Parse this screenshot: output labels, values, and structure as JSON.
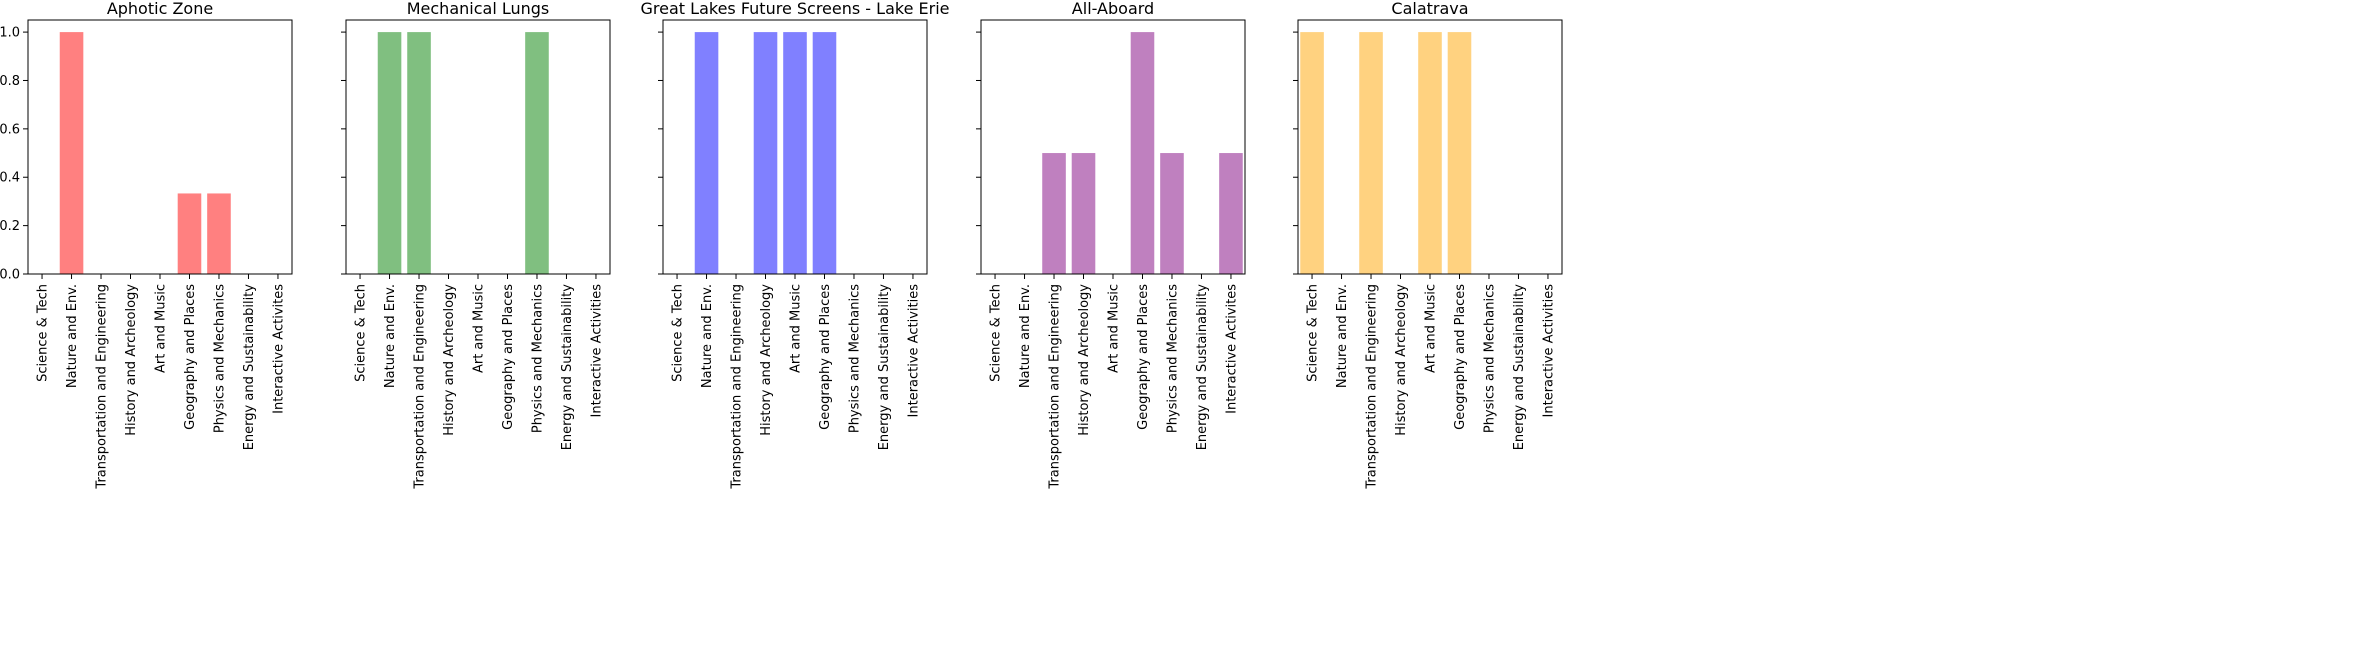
{
  "chart_data": [
    {
      "type": "bar",
      "title": "Aphotic Zone",
      "color": "#ff8080",
      "categories": [
        "Science & Tech",
        "Nature and Env.",
        "Transportation and Engineering",
        "History and Archeology",
        "Art and Music",
        "Geography and Places",
        "Physics and Mechanics",
        "Energy and Sustainability",
        "Interactive Activites"
      ],
      "values": [
        0,
        1.0,
        0,
        0,
        0,
        0.333,
        0.333,
        0,
        0
      ],
      "ylim": [
        0,
        1.05
      ],
      "yticks": [
        "0.0",
        "0.2",
        "0.4",
        "0.6",
        "0.8",
        "1.0"
      ],
      "grid": false
    },
    {
      "type": "bar",
      "title": "Mechanical Lungs",
      "color": "#80bf80",
      "categories": [
        "Science & Tech",
        "Nature and Env.",
        "Transportation and Engineering",
        "History and Archeology",
        "Art and Music",
        "Geography and Places",
        "Physics and Mechanics",
        "Energy and Sustainability",
        "Interactive Activities"
      ],
      "values": [
        0,
        1.0,
        1.0,
        0,
        0,
        0,
        1.0,
        0,
        0
      ],
      "ylim": [
        0,
        1.05
      ],
      "grid": false
    },
    {
      "type": "bar",
      "title": "Great Lakes Future Screens - Lake Erie",
      "color": "#8080ff",
      "categories": [
        "Science & Tech",
        "Nature and Env.",
        "Transportation and Engineering",
        "History and Archeology",
        "Art and Music",
        "Geography and Places",
        "Physics and Mechanics",
        "Energy and Sustainability",
        "Interactive Activities"
      ],
      "values": [
        0,
        1.0,
        0,
        1.0,
        1.0,
        1.0,
        0,
        0,
        0
      ],
      "ylim": [
        0,
        1.05
      ],
      "grid": false
    },
    {
      "type": "bar",
      "title": "All-Aboard",
      "color": "#bf80bf",
      "categories": [
        "Science & Tech",
        "Nature and Env.",
        "Transportation and Engineering",
        "History and Archeology",
        "Art and Music",
        "Geography and Places",
        "Physics and Mechanics",
        "Energy and Sustainability",
        "Interactive Activites"
      ],
      "values": [
        0,
        0,
        0.5,
        0.5,
        0,
        1.0,
        0.5,
        0,
        0.5
      ],
      "ylim": [
        0,
        1.05
      ],
      "grid": false
    },
    {
      "type": "bar",
      "title": "Calatrava",
      "color": "#ffd280",
      "categories": [
        "Science & Tech",
        "Nature and Env.",
        "Transportation and Engineering",
        "History and Archeology",
        "Art and Music",
        "Geography and Places",
        "Physics and Mechanics",
        "Energy and Sustainability",
        "Interactive Activities"
      ],
      "values": [
        1.0,
        0,
        1.0,
        0,
        1.0,
        1.0,
        0,
        0,
        0
      ],
      "ylim": [
        0,
        1.05
      ],
      "grid": false
    }
  ]
}
